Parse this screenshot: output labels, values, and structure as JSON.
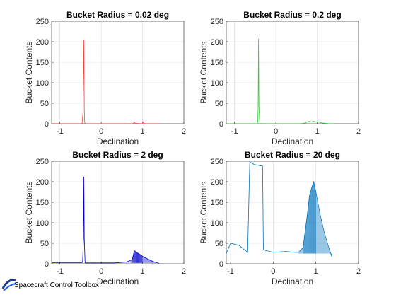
{
  "chart_data": [
    {
      "type": "line",
      "title": "Bucket Radius = 0.02 deg",
      "xlabel": "Declination",
      "ylabel": "Bucket Contents",
      "xlim": [
        -1.2,
        2
      ],
      "ylim": [
        0,
        250
      ],
      "xticks": [
        -1,
        0,
        1,
        2
      ],
      "yticks": [
        0,
        50,
        100,
        150,
        200,
        250
      ],
      "grid": true,
      "color": "#ff4040",
      "series": [
        {
          "x": [
            -1.2,
            -0.5,
            -0.46,
            -0.44,
            -0.42,
            -0.41,
            -0.4,
            -0.39,
            -0.37,
            0.5,
            0.75,
            0.78,
            0.8,
            0.82,
            1.0,
            1.02,
            1.05,
            1.2,
            1.38,
            1.4
          ],
          "y": [
            0,
            0,
            2,
            30,
            205,
            30,
            3,
            1,
            0,
            0,
            0,
            1,
            4,
            1,
            0,
            5,
            0,
            0,
            0,
            0
          ]
        }
      ]
    },
    {
      "type": "line",
      "title": "Bucket Radius = 0.2 deg",
      "xlabel": "Declination",
      "ylabel": "Bucket Contents",
      "xlim": [
        -1.2,
        2
      ],
      "ylim": [
        0,
        250
      ],
      "xticks": [
        -1,
        0,
        1,
        2
      ],
      "yticks": [
        0,
        50,
        100,
        150,
        200,
        250
      ],
      "grid": true,
      "color": "#33cc33",
      "series": [
        {
          "x": [
            -1.2,
            -0.46,
            -0.44,
            -0.43,
            -0.42,
            -0.41,
            -0.39,
            -0.37,
            0.6,
            0.72,
            0.78,
            0.82,
            0.86,
            0.9,
            0.95,
            1.0,
            1.05,
            1.1,
            1.2,
            1.3,
            1.4
          ],
          "y": [
            0,
            0,
            3,
            40,
            207,
            40,
            3,
            0,
            0,
            2,
            5,
            6,
            4,
            6,
            5,
            3,
            4,
            2,
            1,
            0,
            0
          ]
        }
      ]
    },
    {
      "type": "line",
      "title": "Bucket Radius = 2 deg",
      "xlabel": "Declination",
      "ylabel": "Bucket Contents",
      "xlim": [
        -1.2,
        2
      ],
      "ylim": [
        0,
        250
      ],
      "xticks": [
        -1,
        0,
        1,
        2
      ],
      "yticks": [
        0,
        50,
        100,
        150,
        200,
        250
      ],
      "grid": true,
      "color": "#0000cc",
      "series": [
        {
          "x": [
            -1.2,
            -0.46,
            -0.45,
            -0.43,
            -0.42,
            -0.41,
            -0.39,
            -0.38,
            0.3,
            0.6,
            0.75,
            0.8,
            0.85,
            0.9,
            0.95,
            1.0,
            1.1,
            1.2,
            1.3,
            1.4
          ],
          "y": [
            3,
            3,
            5,
            60,
            212,
            60,
            3,
            2,
            2,
            4,
            10,
            32,
            28,
            25,
            22,
            18,
            13,
            8,
            4,
            1
          ]
        }
      ]
    },
    {
      "type": "line",
      "title": "Bucket Radius = 20 deg",
      "xlabel": "Declination",
      "ylabel": "Bucket Contents",
      "xlim": [
        -1.1,
        2
      ],
      "ylim": [
        0,
        250
      ],
      "xticks": [
        -1,
        0,
        1,
        2
      ],
      "yticks": [
        0,
        50,
        100,
        150,
        200,
        250
      ],
      "grid": true,
      "color": "#0072bd",
      "series": [
        {
          "x": [
            -1.1,
            -1.0,
            -0.8,
            -0.6,
            -0.55,
            -0.45,
            -0.25,
            -0.23,
            -0.2,
            0.0,
            0.3,
            0.5,
            0.6,
            0.7,
            0.75,
            0.8,
            0.85,
            0.9,
            0.95,
            1.0,
            1.1,
            1.2,
            1.3,
            1.38
          ],
          "y": [
            25,
            50,
            45,
            28,
            248,
            242,
            238,
            35,
            33,
            28,
            30,
            28,
            28,
            40,
            80,
            120,
            165,
            185,
            200,
            175,
            120,
            75,
            40,
            15
          ]
        }
      ]
    }
  ],
  "footer": {
    "brand_text": "Spacecraft Control Toolbox"
  }
}
